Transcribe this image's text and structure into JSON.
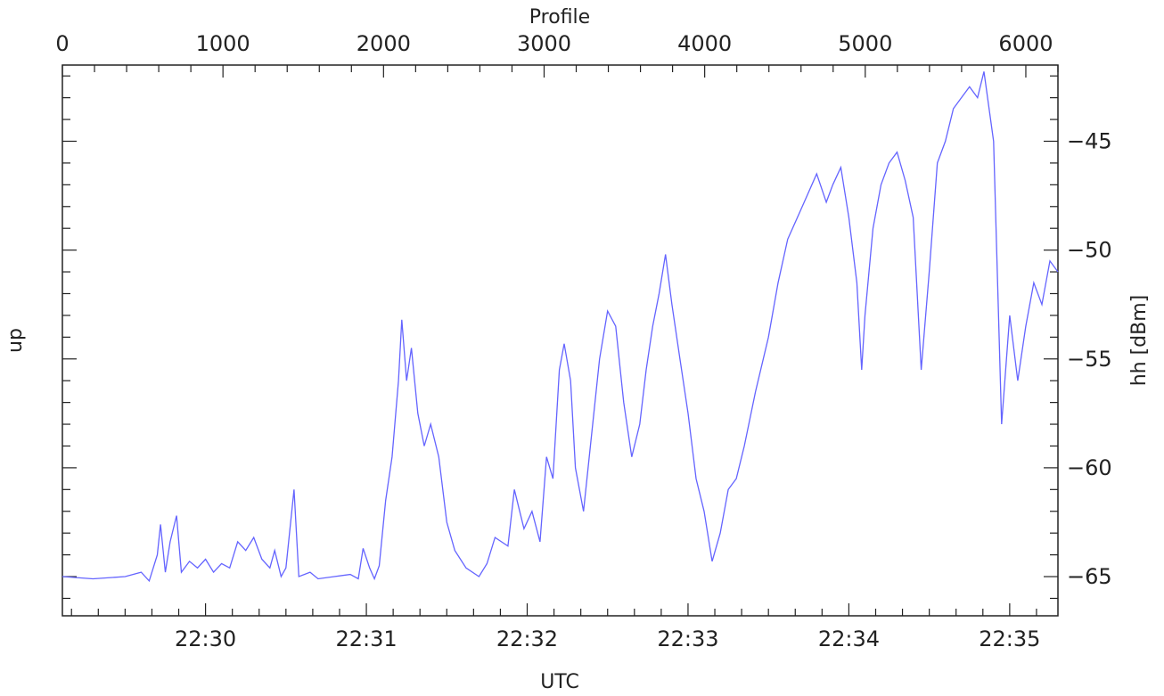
{
  "chart_data": {
    "type": "line",
    "title": "",
    "xlabel_bottom": "UTC",
    "xlabel_top": "Profile",
    "ylabel_left": "up",
    "ylabel_right": "hh [dBm]",
    "xlim_minutes": [
      29.11,
      35.3
    ],
    "ylim_dbm": [
      -66.8,
      -41.5
    ],
    "x_top_ticks": [
      0,
      1000,
      2000,
      3000,
      4000,
      5000,
      6000
    ],
    "x_top_range": [
      0,
      6200
    ],
    "x_bottom_ticks": [
      {
        "minute": 30,
        "label": "22:30"
      },
      {
        "minute": 31,
        "label": "22:31"
      },
      {
        "minute": 32,
        "label": "22:32"
      },
      {
        "minute": 33,
        "label": "22:33"
      },
      {
        "minute": 34,
        "label": "22:34"
      },
      {
        "minute": 35,
        "label": "22:35"
      }
    ],
    "y_right_ticks": [
      -45,
      -50,
      -55,
      -60,
      -65
    ],
    "grid": false,
    "series": [
      {
        "color": "#6464ff",
        "points": [
          [
            29.11,
            -65.0
          ],
          [
            29.3,
            -65.1
          ],
          [
            29.5,
            -65.0
          ],
          [
            29.6,
            -64.8
          ],
          [
            29.65,
            -65.2
          ],
          [
            29.7,
            -64.0
          ],
          [
            29.72,
            -62.6
          ],
          [
            29.75,
            -64.8
          ],
          [
            29.78,
            -63.4
          ],
          [
            29.82,
            -62.2
          ],
          [
            29.85,
            -64.8
          ],
          [
            29.9,
            -64.3
          ],
          [
            29.95,
            -64.6
          ],
          [
            30.0,
            -64.2
          ],
          [
            30.05,
            -64.8
          ],
          [
            30.1,
            -64.4
          ],
          [
            30.15,
            -64.6
          ],
          [
            30.2,
            -63.4
          ],
          [
            30.25,
            -63.8
          ],
          [
            30.3,
            -63.2
          ],
          [
            30.35,
            -64.2
          ],
          [
            30.4,
            -64.6
          ],
          [
            30.43,
            -63.8
          ],
          [
            30.47,
            -65.0
          ],
          [
            30.5,
            -64.6
          ],
          [
            30.55,
            -61.0
          ],
          [
            30.58,
            -65.0
          ],
          [
            30.65,
            -64.8
          ],
          [
            30.7,
            -65.1
          ],
          [
            30.8,
            -65.0
          ],
          [
            30.9,
            -64.9
          ],
          [
            30.95,
            -65.1
          ],
          [
            30.98,
            -63.7
          ],
          [
            31.02,
            -64.6
          ],
          [
            31.05,
            -65.1
          ],
          [
            31.08,
            -64.5
          ],
          [
            31.12,
            -61.5
          ],
          [
            31.16,
            -59.5
          ],
          [
            31.2,
            -56.0
          ],
          [
            31.22,
            -53.2
          ],
          [
            31.25,
            -56.0
          ],
          [
            31.28,
            -54.5
          ],
          [
            31.32,
            -57.5
          ],
          [
            31.36,
            -59.0
          ],
          [
            31.4,
            -58.0
          ],
          [
            31.45,
            -59.5
          ],
          [
            31.5,
            -62.5
          ],
          [
            31.55,
            -63.8
          ],
          [
            31.62,
            -64.6
          ],
          [
            31.7,
            -65.0
          ],
          [
            31.75,
            -64.4
          ],
          [
            31.8,
            -63.2
          ],
          [
            31.88,
            -63.6
          ],
          [
            31.92,
            -61.0
          ],
          [
            31.98,
            -62.8
          ],
          [
            32.03,
            -62.0
          ],
          [
            32.08,
            -63.4
          ],
          [
            32.12,
            -59.5
          ],
          [
            32.16,
            -60.5
          ],
          [
            32.2,
            -55.5
          ],
          [
            32.23,
            -54.3
          ],
          [
            32.27,
            -56.0
          ],
          [
            32.3,
            -60.0
          ],
          [
            32.35,
            -62.0
          ],
          [
            32.4,
            -58.5
          ],
          [
            32.45,
            -55.0
          ],
          [
            32.5,
            -52.8
          ],
          [
            32.55,
            -53.5
          ],
          [
            32.6,
            -57.0
          ],
          [
            32.65,
            -59.5
          ],
          [
            32.7,
            -58.0
          ],
          [
            32.74,
            -55.5
          ],
          [
            32.78,
            -53.5
          ],
          [
            32.82,
            -52.0
          ],
          [
            32.86,
            -50.2
          ],
          [
            32.9,
            -52.5
          ],
          [
            32.95,
            -55.0
          ],
          [
            33.0,
            -57.5
          ],
          [
            33.05,
            -60.5
          ],
          [
            33.1,
            -62.0
          ],
          [
            33.15,
            -64.3
          ],
          [
            33.2,
            -63.0
          ],
          [
            33.25,
            -61.0
          ],
          [
            33.3,
            -60.5
          ],
          [
            33.35,
            -59.0
          ],
          [
            33.42,
            -56.5
          ],
          [
            33.5,
            -54.0
          ],
          [
            33.56,
            -51.5
          ],
          [
            33.62,
            -49.5
          ],
          [
            33.68,
            -48.5
          ],
          [
            33.74,
            -47.5
          ],
          [
            33.8,
            -46.5
          ],
          [
            33.86,
            -47.8
          ],
          [
            33.9,
            -47.0
          ],
          [
            33.95,
            -46.2
          ],
          [
            34.0,
            -48.5
          ],
          [
            34.05,
            -51.5
          ],
          [
            34.08,
            -55.5
          ],
          [
            34.1,
            -53.0
          ],
          [
            34.15,
            -49.0
          ],
          [
            34.2,
            -47.0
          ],
          [
            34.25,
            -46.0
          ],
          [
            34.3,
            -45.5
          ],
          [
            34.35,
            -46.8
          ],
          [
            34.4,
            -48.5
          ],
          [
            34.45,
            -55.5
          ],
          [
            34.5,
            -51.0
          ],
          [
            34.55,
            -46.0
          ],
          [
            34.6,
            -45.0
          ],
          [
            34.65,
            -43.5
          ],
          [
            34.7,
            -43.0
          ],
          [
            34.75,
            -42.5
          ],
          [
            34.8,
            -43.0
          ],
          [
            34.84,
            -41.8
          ],
          [
            34.9,
            -45.0
          ],
          [
            34.95,
            -58.0
          ],
          [
            35.0,
            -53.0
          ],
          [
            35.05,
            -56.0
          ],
          [
            35.1,
            -53.5
          ],
          [
            35.15,
            -51.5
          ],
          [
            35.2,
            -52.5
          ],
          [
            35.25,
            -50.5
          ],
          [
            35.3,
            -51.0
          ]
        ]
      }
    ]
  }
}
